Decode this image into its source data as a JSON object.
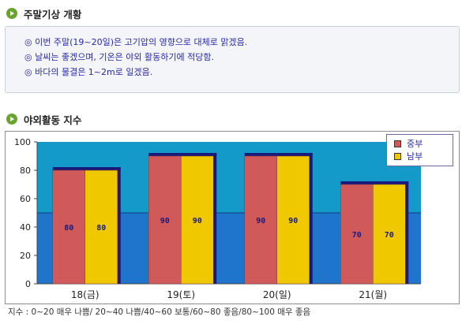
{
  "sections": {
    "weekend_weather_title": "주말기상 개황",
    "outdoor_index_title": "야외활동 지수"
  },
  "notice": {
    "lines": [
      "◎ 이번 주말(19~20일)은 고기압의 영향으로 대체로 맑겠음.",
      "◎ 날씨는 좋겠으며, 기온은 야외 활동하기에 적당함.",
      "◎ 바다의 물결은 1~2m로 일겠음."
    ]
  },
  "footnote": "지수 : 0~20 매우 나쁨/ 20~40 나쁨/40~60 보통/60~80 좋음/80~100 매우 좋음",
  "colors": {
    "plot_top": "#139ac8",
    "plot_bottom": "#1f75cc",
    "bar_central": "#d05a5a",
    "bar_southern": "#f0c800",
    "bar_shadow": "#1a1a7a",
    "value_label": "#1a1a7a"
  },
  "chart_data": {
    "type": "bar",
    "categories": [
      "18(금)",
      "19(토)",
      "20(일)",
      "21(월)"
    ],
    "series": [
      {
        "name": "중부",
        "values": [
          80,
          90,
          90,
          70
        ]
      },
      {
        "name": "남부",
        "values": [
          80,
          90,
          90,
          70
        ]
      }
    ],
    "ylim": [
      0,
      100
    ],
    "yticks": [
      0,
      20,
      40,
      60,
      80,
      100
    ],
    "band_split": 50,
    "legend_position": "top-right",
    "grid": false
  }
}
